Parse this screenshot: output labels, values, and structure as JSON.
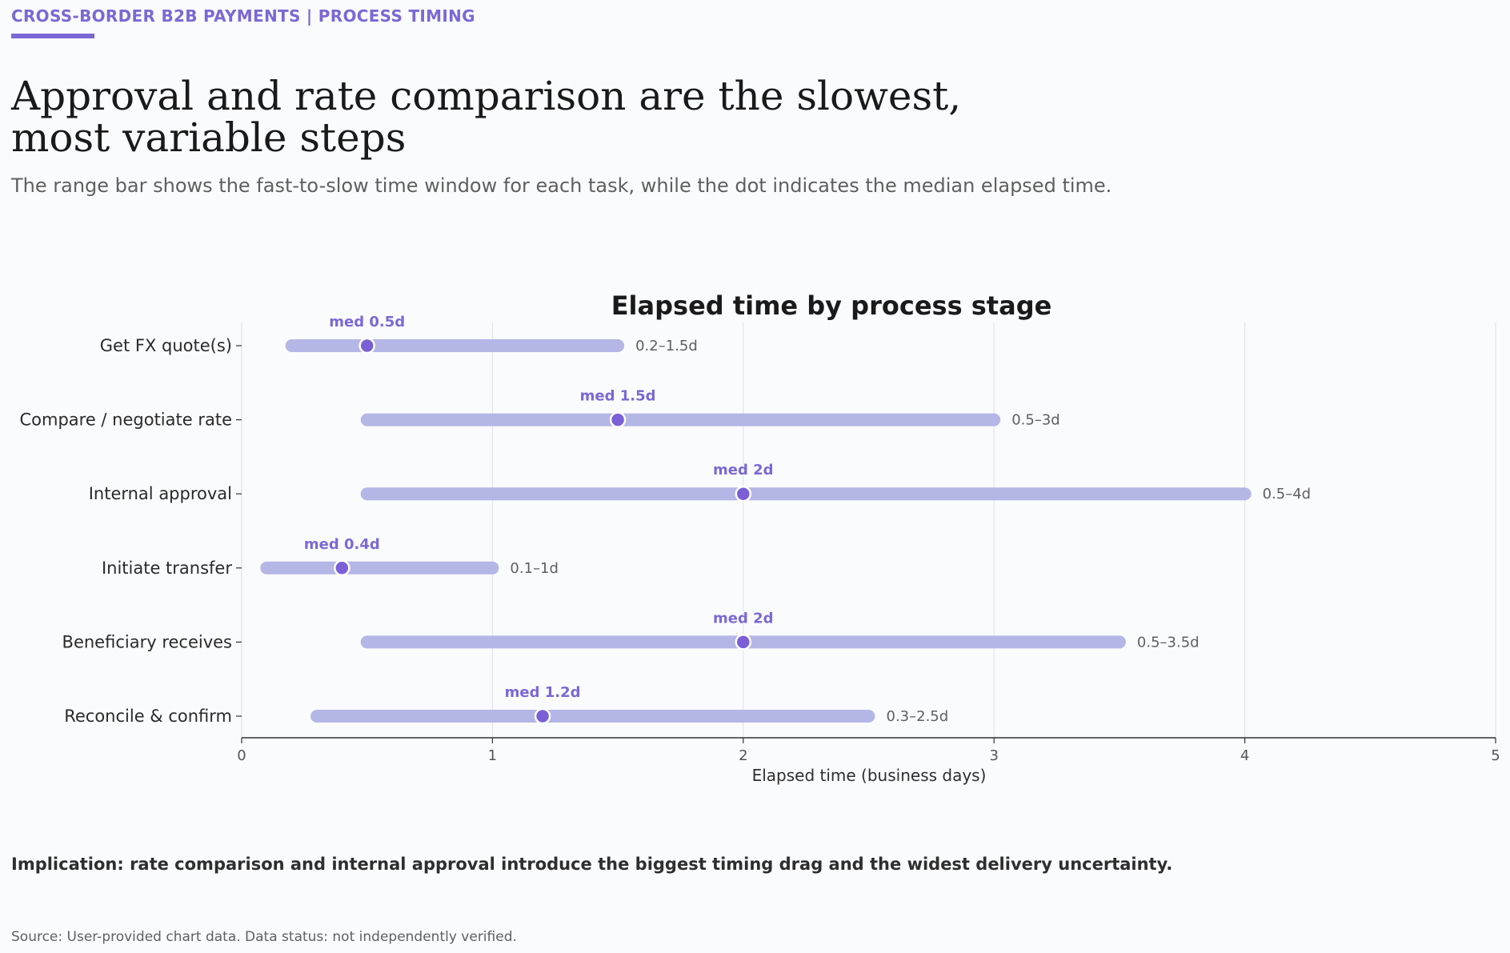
{
  "header": {
    "kicker": "CROSS-BORDER B2B PAYMENTS  |  PROCESS TIMING",
    "headline_line1": "Approval and rate comparison are the slowest,",
    "headline_line2": "most variable steps",
    "subhead": "The range bar shows the fast-to-slow time window for each task, while the dot indicates the median elapsed time."
  },
  "chart_data": {
    "type": "range-dot",
    "title": "Elapsed time by process stage",
    "xlabel": "Elapsed time (business days)",
    "xlim": [
      0,
      5
    ],
    "xticks": [
      "0",
      "1",
      "2",
      "3",
      "4",
      "5"
    ],
    "grid": "vertical",
    "colors": {
      "range": "#b4b6e6",
      "median": "#7b5fd6",
      "median_label": "#7b68d4",
      "range_label": "#5f5f5f"
    },
    "stages": [
      {
        "label": "Get FX quote(s)",
        "low": 0.2,
        "high": 1.5,
        "median": 0.5,
        "median_label": "med 0.5d",
        "range_label": "0.2–1.5d"
      },
      {
        "label": "Compare / negotiate rate",
        "low": 0.5,
        "high": 3,
        "median": 1.5,
        "median_label": "med 1.5d",
        "range_label": "0.5–3d"
      },
      {
        "label": "Internal approval",
        "low": 0.5,
        "high": 4,
        "median": 2,
        "median_label": "med 2d",
        "range_label": "0.5–4d"
      },
      {
        "label": "Initiate transfer",
        "low": 0.1,
        "high": 1,
        "median": 0.4,
        "median_label": "med 0.4d",
        "range_label": "0.1–1d"
      },
      {
        "label": "Beneficiary receives",
        "low": 0.5,
        "high": 3.5,
        "median": 2,
        "median_label": "med 2d",
        "range_label": "0.5–3.5d"
      },
      {
        "label": "Reconcile & confirm",
        "low": 0.3,
        "high": 2.5,
        "median": 1.2,
        "median_label": "med 1.2d",
        "range_label": "0.3–2.5d"
      }
    ]
  },
  "footer": {
    "implication": "Implication: rate comparison and internal approval introduce the biggest timing drag and the widest delivery uncertainty.",
    "source": "Source: User-provided chart data. Data status: not independently verified."
  }
}
